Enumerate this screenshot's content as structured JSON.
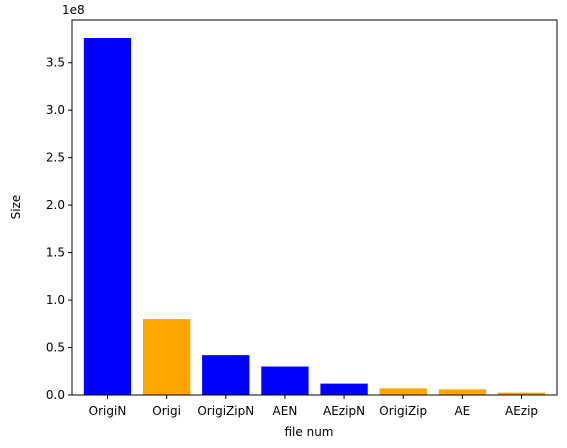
{
  "chart_data": {
    "type": "bar",
    "title": "",
    "xlabel": "file num",
    "ylabel": "Size",
    "y_offset_label": "1e8",
    "categories": [
      "OrigiN",
      "Origi",
      "OrigiZipN",
      "AEN",
      "AEzipN",
      "OrigiZip",
      "AE",
      "AEzip"
    ],
    "values": [
      376000000,
      80000000,
      42000000,
      30000000,
      12000000,
      7000000,
      6000000,
      2500000
    ],
    "bar_colors": [
      "#0000ff",
      "#ffa500",
      "#0000ff",
      "#0000ff",
      "#0000ff",
      "#ffa500",
      "#ffa500",
      "#ffa500"
    ],
    "ylim": [
      0,
      395000000
    ],
    "y_ticks": [
      0,
      50000000,
      100000000,
      150000000,
      200000000,
      250000000,
      300000000,
      350000000
    ],
    "y_tick_labels": [
      "0.0",
      "0.5",
      "1.0",
      "1.5",
      "2.0",
      "2.5",
      "3.0",
      "3.5"
    ],
    "grid": false,
    "legend": "none"
  }
}
